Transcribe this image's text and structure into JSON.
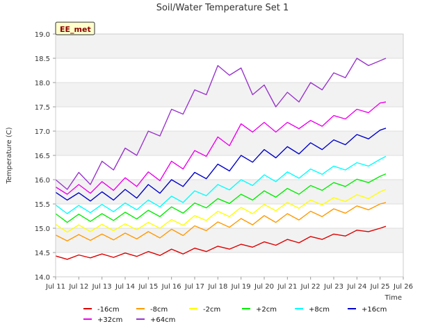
{
  "chart_data": {
    "type": "line",
    "title": "Soil/Water Temperature Set 1",
    "xlabel": "Time",
    "ylabel": "Temperature (C)",
    "badge": "EE_met",
    "xlim": [
      11,
      26
    ],
    "ylim": [
      14.0,
      19.0
    ],
    "x_ticks": [
      {
        "v": 11,
        "label": "Jul 11"
      },
      {
        "v": 12,
        "label": "Jul 12"
      },
      {
        "v": 13,
        "label": "Jul 13"
      },
      {
        "v": 14,
        "label": "Jul 14"
      },
      {
        "v": 15,
        "label": "Jul 15"
      },
      {
        "v": 16,
        "label": "Jul 16"
      },
      {
        "v": 17,
        "label": "Jul 17"
      },
      {
        "v": 18,
        "label": "Jul 18"
      },
      {
        "v": 19,
        "label": "Jul 19"
      },
      {
        "v": 20,
        "label": "Jul 20"
      },
      {
        "v": 21,
        "label": "Jul 21"
      },
      {
        "v": 22,
        "label": "Jul 22"
      },
      {
        "v": 23,
        "label": "Jul 23"
      },
      {
        "v": 24,
        "label": "Jul 24"
      },
      {
        "v": 25,
        "label": "Jul 25"
      },
      {
        "v": 26,
        "label": "Jul 26"
      }
    ],
    "y_ticks": [
      {
        "v": 14.0,
        "label": "14.0"
      },
      {
        "v": 14.5,
        "label": "14.5"
      },
      {
        "v": 15.0,
        "label": "15.0"
      },
      {
        "v": 15.5,
        "label": "15.5"
      },
      {
        "v": 16.0,
        "label": "16.0"
      },
      {
        "v": 16.5,
        "label": "16.5"
      },
      {
        "v": 17.0,
        "label": "17.0"
      },
      {
        "v": 17.5,
        "label": "17.5"
      },
      {
        "v": 18.0,
        "label": "18.0"
      },
      {
        "v": 18.5,
        "label": "18.5"
      },
      {
        "v": 19.0,
        "label": "19.0"
      }
    ],
    "grid": true,
    "legend_position": "bottom",
    "series": [
      {
        "name": "-16cm",
        "color": "#dd0000",
        "x": [
          11.0,
          11.5,
          12.0,
          12.5,
          13.0,
          13.5,
          14.0,
          14.5,
          15.0,
          15.5,
          16.0,
          16.5,
          17.0,
          17.5,
          18.0,
          18.5,
          19.0,
          19.5,
          20.0,
          20.5,
          21.0,
          21.5,
          22.0,
          22.5,
          23.0,
          23.5,
          24.0,
          24.5,
          25.0,
          25.25
        ],
        "y": [
          14.43,
          14.36,
          14.45,
          14.39,
          14.47,
          14.4,
          14.49,
          14.42,
          14.52,
          14.44,
          14.57,
          14.47,
          14.59,
          14.52,
          14.63,
          14.57,
          14.67,
          14.61,
          14.72,
          14.65,
          14.77,
          14.7,
          14.83,
          14.77,
          14.88,
          14.84,
          14.96,
          14.93,
          15.0,
          15.04
        ]
      },
      {
        "name": "-8cm",
        "color": "#ff9900",
        "x": [
          11.0,
          11.5,
          12.0,
          12.5,
          13.0,
          13.5,
          14.0,
          14.5,
          15.0,
          15.5,
          16.0,
          16.5,
          17.0,
          17.5,
          18.0,
          18.5,
          19.0,
          19.5,
          20.0,
          20.5,
          21.0,
          21.5,
          22.0,
          22.5,
          23.0,
          23.5,
          24.0,
          24.5,
          25.0,
          25.25
        ],
        "y": [
          14.86,
          14.74,
          14.87,
          14.75,
          14.88,
          14.76,
          14.9,
          14.78,
          14.93,
          14.8,
          14.98,
          14.85,
          15.05,
          14.95,
          15.13,
          15.02,
          15.2,
          15.07,
          15.26,
          15.12,
          15.3,
          15.17,
          15.35,
          15.24,
          15.4,
          15.31,
          15.46,
          15.38,
          15.5,
          15.53
        ]
      },
      {
        "name": "-2cm",
        "color": "#ffff00",
        "x": [
          11.0,
          11.5,
          12.0,
          12.5,
          13.0,
          13.5,
          14.0,
          14.5,
          15.0,
          15.5,
          16.0,
          16.5,
          17.0,
          17.5,
          18.0,
          18.5,
          19.0,
          19.5,
          20.0,
          20.5,
          21.0,
          21.5,
          22.0,
          22.5,
          23.0,
          23.5,
          24.0,
          24.5,
          25.0,
          25.25
        ],
        "y": [
          15.08,
          14.92,
          15.07,
          14.93,
          15.08,
          14.95,
          15.09,
          14.97,
          15.12,
          15.0,
          15.18,
          15.06,
          15.26,
          15.16,
          15.35,
          15.24,
          15.43,
          15.3,
          15.49,
          15.36,
          15.53,
          15.41,
          15.58,
          15.48,
          15.63,
          15.55,
          15.69,
          15.61,
          15.75,
          15.8
        ]
      },
      {
        "name": "+2cm",
        "color": "#00ee00",
        "x": [
          11.0,
          11.5,
          12.0,
          12.5,
          13.0,
          13.5,
          14.0,
          14.5,
          15.0,
          15.5,
          16.0,
          16.5,
          17.0,
          17.5,
          18.0,
          18.5,
          19.0,
          19.5,
          20.0,
          20.5,
          21.0,
          21.5,
          22.0,
          22.5,
          23.0,
          23.5,
          24.0,
          24.5,
          25.0,
          25.25
        ],
        "y": [
          15.3,
          15.12,
          15.29,
          15.14,
          15.3,
          15.16,
          15.33,
          15.19,
          15.37,
          15.24,
          15.44,
          15.31,
          15.52,
          15.42,
          15.61,
          15.51,
          15.7,
          15.58,
          15.77,
          15.64,
          15.82,
          15.7,
          15.88,
          15.78,
          15.94,
          15.86,
          16.01,
          15.94,
          16.07,
          16.12
        ]
      },
      {
        "name": "+8cm",
        "color": "#00ffff",
        "x": [
          11.0,
          11.5,
          12.0,
          12.5,
          13.0,
          13.5,
          14.0,
          14.5,
          15.0,
          15.5,
          16.0,
          16.5,
          17.0,
          17.5,
          18.0,
          18.5,
          19.0,
          19.5,
          20.0,
          20.5,
          21.0,
          21.5,
          22.0,
          22.5,
          23.0,
          23.5,
          24.0,
          24.5,
          25.0,
          25.25
        ],
        "y": [
          15.48,
          15.3,
          15.47,
          15.32,
          15.49,
          15.34,
          15.52,
          15.38,
          15.58,
          15.44,
          15.66,
          15.53,
          15.77,
          15.67,
          15.9,
          15.79,
          16.0,
          15.88,
          16.1,
          15.96,
          16.16,
          16.03,
          16.22,
          16.11,
          16.28,
          16.2,
          16.35,
          16.28,
          16.42,
          16.48
        ]
      },
      {
        "name": "+16cm",
        "color": "#0000cc",
        "x": [
          11.0,
          11.5,
          12.0,
          12.5,
          13.0,
          13.5,
          14.0,
          14.5,
          15.0,
          15.5,
          16.0,
          16.5,
          17.0,
          17.5,
          18.0,
          18.5,
          19.0,
          19.5,
          20.0,
          20.5,
          21.0,
          21.5,
          22.0,
          22.5,
          23.0,
          23.5,
          24.0,
          24.5,
          25.0,
          25.25
        ],
        "y": [
          15.74,
          15.58,
          15.73,
          15.56,
          15.75,
          15.58,
          15.8,
          15.62,
          15.9,
          15.72,
          16.0,
          15.86,
          16.15,
          16.02,
          16.32,
          16.18,
          16.5,
          16.36,
          16.62,
          16.45,
          16.68,
          16.53,
          16.76,
          16.62,
          16.82,
          16.72,
          16.93,
          16.84,
          17.02,
          17.06
        ]
      },
      {
        "name": "+32cm",
        "color": "#ee00ee",
        "x": [
          11.0,
          11.5,
          12.0,
          12.5,
          13.0,
          13.5,
          14.0,
          14.5,
          15.0,
          15.5,
          16.0,
          16.5,
          17.0,
          17.5,
          18.0,
          18.5,
          19.0,
          19.5,
          20.0,
          20.5,
          21.0,
          21.5,
          22.0,
          22.5,
          23.0,
          23.5,
          24.0,
          24.5,
          25.0,
          25.25
        ],
        "y": [
          15.85,
          15.7,
          15.9,
          15.72,
          15.96,
          15.78,
          16.04,
          15.86,
          16.16,
          15.98,
          16.38,
          16.22,
          16.6,
          16.48,
          16.88,
          16.7,
          17.15,
          16.98,
          17.18,
          16.98,
          17.18,
          17.05,
          17.22,
          17.1,
          17.32,
          17.25,
          17.45,
          17.38,
          17.58,
          17.6
        ]
      },
      {
        "name": "+64cm",
        "color": "#9933cc",
        "x": [
          11.0,
          11.5,
          12.0,
          12.5,
          13.0,
          13.5,
          14.0,
          14.5,
          15.0,
          15.5,
          16.0,
          16.5,
          17.0,
          17.5,
          18.0,
          18.5,
          19.0,
          19.5,
          20.0,
          20.5,
          21.0,
          21.5,
          22.0,
          22.5,
          23.0,
          23.5,
          24.0,
          24.5,
          25.0,
          25.25
        ],
        "y": [
          16.0,
          15.8,
          16.15,
          15.9,
          16.38,
          16.2,
          16.65,
          16.5,
          17.0,
          16.9,
          17.45,
          17.35,
          17.85,
          17.75,
          18.35,
          18.15,
          18.3,
          17.75,
          17.95,
          17.5,
          17.8,
          17.6,
          18.0,
          17.85,
          18.2,
          18.1,
          18.5,
          18.35,
          18.45,
          18.5
        ]
      }
    ]
  }
}
